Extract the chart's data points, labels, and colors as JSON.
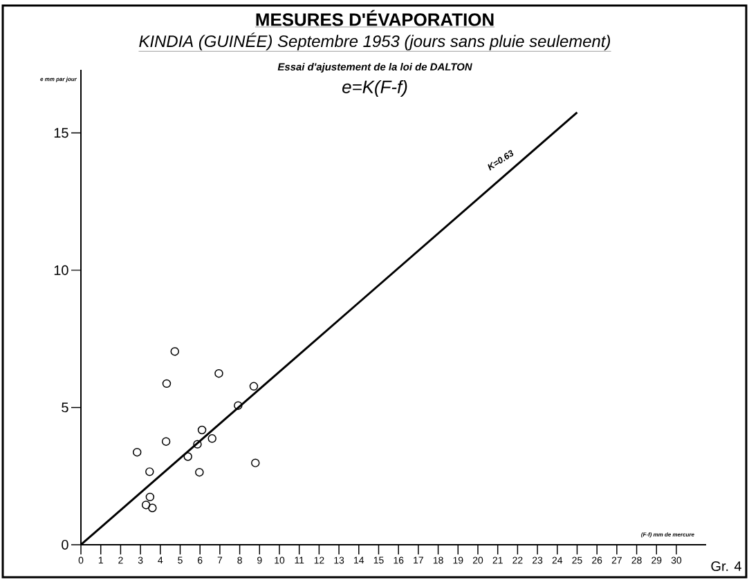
{
  "chart_data": {
    "type": "scatter",
    "title": "MESURES D'ÉVAPORATION",
    "subtitle": "KINDIA (GUINÉE) Septembre 1953 (jours sans pluie seulement)",
    "xlabel": "(F-f) mm de mercure",
    "ylabel": "e mm par jour",
    "annotations": [
      "Essai d'ajustement de la loi de DALTON",
      "e=K(F-f)",
      "K=0.63",
      "Gr. 4"
    ],
    "series": [
      {
        "color": "#000000",
        "marker": "circle",
        "x": [
          4.73,
          6.95,
          4.32,
          8.71,
          7.92,
          6.1,
          6.61,
          4.29,
          5.87,
          2.83,
          5.39,
          8.79,
          3.46,
          5.97,
          3.48,
          3.28,
          3.6
        ],
        "values": [
          7.04,
          6.24,
          5.87,
          5.77,
          5.07,
          4.18,
          3.87,
          3.76,
          3.66,
          3.37,
          3.21,
          2.98,
          2.66,
          2.64,
          1.74,
          1.45,
          1.34
        ]
      },
      {
        "type": "line",
        "color": "#000000",
        "x": [
          0,
          25
        ],
        "values": [
          0,
          15.75
        ]
      }
    ],
    "xlim": [
      0,
      31.5
    ],
    "ylim": [
      0,
      17.3
    ],
    "xticks": [
      0,
      1,
      2,
      3,
      4,
      5,
      6,
      7,
      8,
      9,
      10,
      11,
      12,
      13,
      14,
      15,
      16,
      17,
      18,
      19,
      20,
      21,
      22,
      23,
      24,
      25,
      26,
      27,
      28,
      29,
      30
    ],
    "yticks": [
      0,
      5,
      10,
      15
    ]
  }
}
